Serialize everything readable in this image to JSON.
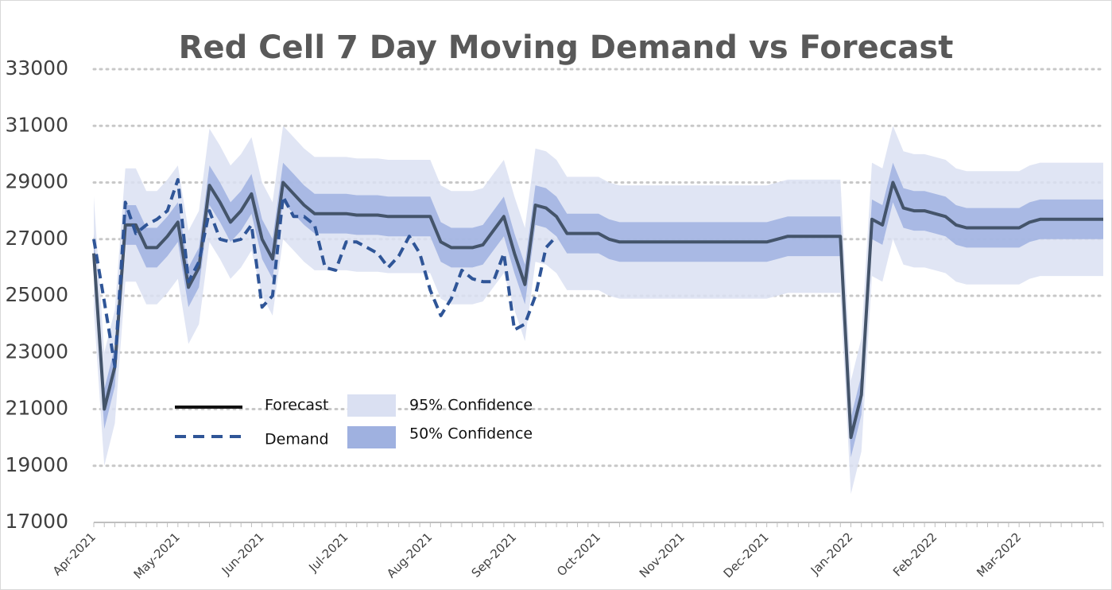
{
  "chart_data": {
    "type": "line",
    "title": "Red Cell 7 Day Moving Demand vs Forecast",
    "categories": [
      "Apr-2021",
      null,
      null,
      null,
      null,
      null,
      null,
      null,
      "May-2021",
      null,
      null,
      null,
      null,
      null,
      null,
      null,
      "Jun-2021",
      null,
      null,
      null,
      null,
      null,
      null,
      null,
      "Jul-2021",
      null,
      null,
      null,
      null,
      null,
      null,
      null,
      "Aug-2021",
      null,
      null,
      null,
      null,
      null,
      null,
      null,
      "Sep-2021",
      null,
      null,
      null,
      null,
      null,
      null,
      null,
      "Oct-2021",
      null,
      null,
      null,
      null,
      null,
      null,
      null,
      "Nov-2021",
      null,
      null,
      null,
      null,
      null,
      null,
      null,
      "Dec-2021",
      null,
      null,
      null,
      null,
      null,
      null,
      null,
      "Jan-2022",
      null,
      null,
      null,
      null,
      null,
      null,
      null,
      "Feb-2022",
      null,
      null,
      null,
      null,
      null,
      null,
      null,
      "Mar-2022",
      null,
      null,
      null,
      null,
      null,
      null,
      null,
      null
    ],
    "ylim": [
      17000,
      33000
    ],
    "yticks": [
      17000,
      19000,
      21000,
      23000,
      25000,
      27000,
      29000,
      31000,
      33000
    ],
    "grid": true,
    "legend": "lower left",
    "series": [
      {
        "name": "95% Confidence",
        "type": "band",
        "color": "#dae0f2",
        "upper": [
          28500,
          23000,
          24500,
          29500,
          29500,
          28700,
          28700,
          29100,
          29600,
          27300,
          28000,
          30900,
          30300,
          29600,
          30000,
          30600,
          29000,
          28300,
          31000,
          30600,
          30200,
          29900,
          29900,
          29900,
          29900,
          29850,
          29850,
          29850,
          29800,
          29800,
          29800,
          29800,
          29800,
          28900,
          28700,
          28700,
          28700,
          28800,
          29300,
          29800,
          28500,
          27400,
          30200,
          30100,
          29800,
          29200,
          29200,
          29200,
          29200,
          29000,
          28900,
          28900,
          28900,
          28900,
          28900,
          28900,
          28900,
          28900,
          28900,
          28900,
          28900,
          28900,
          28900,
          28900,
          28900,
          29000,
          29100,
          29100,
          29100,
          29100,
          29100,
          29100,
          22000,
          23500,
          29700,
          29500,
          31000,
          30100,
          30000,
          30000,
          29900,
          29800,
          29500,
          29400,
          29400,
          29400,
          29400,
          29400,
          29400,
          29600,
          29700,
          29700,
          29700,
          29700,
          29700,
          29700,
          29700
        ],
        "lower": [
          24500,
          19000,
          20500,
          25500,
          25500,
          24700,
          24700,
          25100,
          25600,
          23300,
          24000,
          26900,
          26300,
          25600,
          26000,
          26600,
          25000,
          24300,
          27000,
          26600,
          26200,
          25900,
          25900,
          25900,
          25900,
          25850,
          25850,
          25850,
          25800,
          25800,
          25800,
          25800,
          25800,
          24900,
          24700,
          24700,
          24700,
          24800,
          25300,
          25800,
          24500,
          23400,
          26200,
          26100,
          25800,
          25200,
          25200,
          25200,
          25200,
          25000,
          24900,
          24900,
          24900,
          24900,
          24900,
          24900,
          24900,
          24900,
          24900,
          24900,
          24900,
          24900,
          24900,
          24900,
          24900,
          25000,
          25100,
          25100,
          25100,
          25100,
          25100,
          25100,
          18000,
          19500,
          25700,
          25500,
          27000,
          26100,
          26000,
          26000,
          25900,
          25800,
          25500,
          25400,
          25400,
          25400,
          25400,
          25400,
          25400,
          25600,
          25700,
          25700,
          25700,
          25700,
          25700,
          25700,
          25700
        ]
      },
      {
        "name": "50% Confidence",
        "type": "band",
        "color": "#9fb1e0",
        "upper": [
          27200,
          21700,
          23200,
          28200,
          28200,
          27400,
          27400,
          27800,
          28300,
          26000,
          26700,
          29600,
          29000,
          28300,
          28700,
          29300,
          27700,
          27000,
          29700,
          29300,
          28900,
          28600,
          28600,
          28600,
          28600,
          28550,
          28550,
          28550,
          28500,
          28500,
          28500,
          28500,
          28500,
          27600,
          27400,
          27400,
          27400,
          27500,
          28000,
          28500,
          27200,
          26100,
          28900,
          28800,
          28500,
          27900,
          27900,
          27900,
          27900,
          27700,
          27600,
          27600,
          27600,
          27600,
          27600,
          27600,
          27600,
          27600,
          27600,
          27600,
          27600,
          27600,
          27600,
          27600,
          27600,
          27700,
          27800,
          27800,
          27800,
          27800,
          27800,
          27800,
          20700,
          22200,
          28400,
          28200,
          29700,
          28800,
          28700,
          28700,
          28600,
          28500,
          28200,
          28100,
          28100,
          28100,
          28100,
          28100,
          28100,
          28300,
          28400,
          28400,
          28400,
          28400,
          28400,
          28400,
          28400
        ],
        "lower": [
          25800,
          20300,
          21800,
          26800,
          26800,
          26000,
          26000,
          26400,
          26900,
          24600,
          25300,
          28200,
          27600,
          26900,
          27300,
          27900,
          26300,
          25600,
          28300,
          27900,
          27500,
          27200,
          27200,
          27200,
          27200,
          27150,
          27150,
          27150,
          27100,
          27100,
          27100,
          27100,
          27100,
          26200,
          26000,
          26000,
          26000,
          26100,
          26600,
          27100,
          25800,
          24700,
          27500,
          27400,
          27100,
          26500,
          26500,
          26500,
          26500,
          26300,
          26200,
          26200,
          26200,
          26200,
          26200,
          26200,
          26200,
          26200,
          26200,
          26200,
          26200,
          26200,
          26200,
          26200,
          26200,
          26300,
          26400,
          26400,
          26400,
          26400,
          26400,
          26400,
          19300,
          20800,
          27000,
          26800,
          28300,
          27400,
          27300,
          27300,
          27200,
          27100,
          26800,
          26700,
          26700,
          26700,
          26700,
          26700,
          26700,
          26900,
          27000,
          27000,
          27000,
          27000,
          27000,
          27000,
          27000
        ]
      },
      {
        "name": "Forecast",
        "color": "#44546a",
        "dash": false,
        "values": [
          26500,
          21000,
          22500,
          27500,
          27500,
          26700,
          26700,
          27100,
          27600,
          25300,
          26000,
          28900,
          28300,
          27600,
          28000,
          28600,
          27000,
          26300,
          29000,
          28600,
          28200,
          27900,
          27900,
          27900,
          27900,
          27850,
          27850,
          27850,
          27800,
          27800,
          27800,
          27800,
          27800,
          26900,
          26700,
          26700,
          26700,
          26800,
          27300,
          27800,
          26500,
          25400,
          28200,
          28100,
          27800,
          27200,
          27200,
          27200,
          27200,
          27000,
          26900,
          26900,
          26900,
          26900,
          26900,
          26900,
          26900,
          26900,
          26900,
          26900,
          26900,
          26900,
          26900,
          26900,
          26900,
          27000,
          27100,
          27100,
          27100,
          27100,
          27100,
          27100,
          20000,
          21500,
          27700,
          27500,
          29000,
          28100,
          28000,
          28000,
          27900,
          27800,
          27500,
          27400,
          27400,
          27400,
          27400,
          27400,
          27400,
          27600,
          27700,
          27700,
          27700,
          27700,
          27700,
          27700,
          27700
        ]
      },
      {
        "name": "Demand",
        "color": "#2f5597",
        "dash": true,
        "values": [
          27000,
          24800,
          22500,
          28300,
          27200,
          27500,
          27700,
          28000,
          29100,
          25500,
          26200,
          28000,
          27000,
          26900,
          27000,
          27500,
          24600,
          25000,
          28500,
          27800,
          27800,
          27500,
          26000,
          25900,
          26900,
          26900,
          26700,
          26500,
          26000,
          26400,
          27100,
          26500,
          25200,
          24300,
          24900,
          25900,
          25600,
          25500,
          25500,
          26500,
          23800,
          24000,
          25000,
          26700,
          27100,
          null,
          null,
          null,
          null,
          null,
          null,
          null,
          null,
          null,
          null,
          null,
          null,
          null,
          null,
          null,
          null,
          null,
          null,
          null,
          null,
          null,
          null,
          null,
          null,
          null,
          null,
          null,
          null,
          null,
          null,
          null,
          null,
          null,
          null,
          null,
          null,
          null,
          null,
          null,
          null,
          null,
          null,
          null,
          null,
          null,
          null,
          null,
          null,
          null,
          null,
          null,
          null
        ]
      }
    ]
  }
}
